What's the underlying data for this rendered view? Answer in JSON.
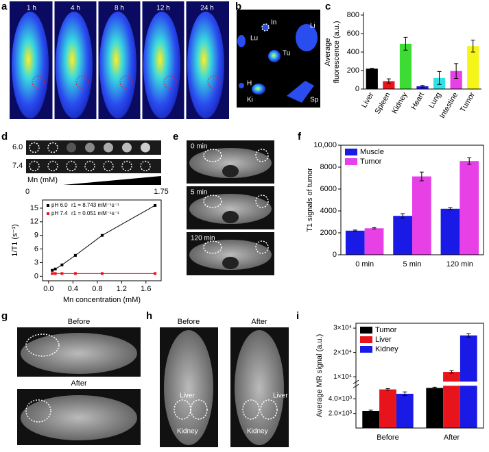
{
  "panel_labels": [
    "a",
    "b",
    "c",
    "d",
    "e",
    "f",
    "g",
    "h",
    "i"
  ],
  "panel_a": {
    "time_labels": [
      "1 h",
      "4 h",
      "8 h",
      "12 h",
      "24 h"
    ]
  },
  "panel_b": {
    "organ_labels": [
      "In",
      "Lu",
      "Li",
      "Tu",
      "H",
      "Ki",
      "Sp"
    ]
  },
  "panel_d_phantom": {
    "rows": [
      "6.0",
      "7.4"
    ],
    "axis_label": "Mn (mM)",
    "range_labels": [
      "0",
      "1.75"
    ]
  },
  "panel_e": {
    "time_labels": [
      "0 min",
      "5 min",
      "120 min"
    ]
  },
  "panel_g": {
    "labels": [
      "Before",
      "After"
    ]
  },
  "panel_h": {
    "labels": [
      "Before",
      "After"
    ],
    "before_annotations": [
      "Liver",
      "Kidney"
    ],
    "after_annotations": [
      "Liver",
      "Kidney"
    ]
  },
  "chart_data": [
    {
      "type": "bar",
      "ylabel": [
        "Average",
        "fluorescence (a.u.)"
      ],
      "frame": false,
      "categories": [
        "Liver",
        "Spleen",
        "Kidney",
        "Heart",
        "Lung",
        "Intestine",
        "Tumor"
      ],
      "values": [
        220,
        85,
        490,
        30,
        120,
        195,
        465
      ],
      "errors": [
        5,
        25,
        70,
        10,
        70,
        80,
        65
      ],
      "colors": [
        "#000000",
        "#e8141b",
        "#3ddc35",
        "#1a1ae6",
        "#33e0e6",
        "#e640e6",
        "#f5f51a"
      ],
      "ylim": [
        0,
        800
      ],
      "yticks": [
        0,
        200,
        400,
        600,
        800
      ]
    },
    {
      "type": "line",
      "xlabel": "Mn concentration (mM)",
      "ylabel": "1/T1 (s⁻¹)",
      "frame": true,
      "x": [
        0.06,
        0.11,
        0.22,
        0.44,
        0.88,
        1.75
      ],
      "series": [
        {
          "name": "pH 6.0",
          "legend_detail": "r1 = 8.743 mM⁻¹s⁻¹",
          "color": "#000000",
          "values": [
            1.3,
            1.6,
            2.5,
            4.6,
            9.0,
            15.6
          ]
        },
        {
          "name": "pH 7.4",
          "legend_detail": "r1 = 0.051 mM⁻¹s⁻¹",
          "color": "#e8141b",
          "values": [
            0.6,
            0.6,
            0.6,
            0.6,
            0.6,
            0.6
          ]
        }
      ],
      "xlim": [
        -0.1,
        1.85
      ],
      "xticks": [
        {
          "value": 0,
          "label": "0.0"
        },
        0.4,
        0.8,
        1.2,
        1.6
      ],
      "ylim": [
        -1,
        16.8
      ],
      "yticks": [
        0,
        3,
        6,
        9,
        12,
        15
      ]
    },
    {
      "type": "bar",
      "ylabel": "T1 signals of tumor",
      "frame": true,
      "categories": [
        "0 min",
        "5 min",
        "120 min"
      ],
      "series": [
        {
          "name": "Muscle",
          "color": "#1a1ae6",
          "values": [
            2200,
            3550,
            4200
          ],
          "errors": [
            60,
            200,
            100
          ]
        },
        {
          "name": "Tumor",
          "color": "#e640e6",
          "values": [
            2420,
            7150,
            8550
          ],
          "errors": [
            60,
            400,
            300
          ]
        }
      ],
      "ylim": [
        0,
        10000
      ],
      "yticks": [
        0,
        2000,
        4000,
        6000,
        8000,
        {
          "value": 10000,
          "label": "10,000"
        }
      ]
    },
    {
      "type": "bar",
      "ylabel": "Average MR signal (a.u.)",
      "frame": true,
      "categories": [
        "Before",
        "After"
      ],
      "series": [
        {
          "name": "Tumor",
          "color": "#000000",
          "values": [
            2350,
            5500
          ],
          "errors": [
            100,
            100
          ]
        },
        {
          "name": "Liver",
          "color": "#e8141b",
          "values": [
            5300,
            12000
          ],
          "errors": [
            100,
            500
          ]
        },
        {
          "name": "Kidney",
          "color": "#1a1ae6",
          "values": [
            4700,
            27000
          ],
          "errors": [
            250,
            700
          ]
        }
      ],
      "ylim": [
        0,
        32000
      ],
      "axis_break": [
        5800,
        8000
      ],
      "yticks": [
        {
          "value": 2000,
          "label": "2.0×10³"
        },
        {
          "value": 4000,
          "label": "4.0×10³"
        },
        {
          "value": 10000,
          "label": "1×10⁴"
        },
        {
          "value": 20000,
          "label": "2×10⁴"
        },
        {
          "value": 30000,
          "label": "3×10⁴"
        }
      ]
    }
  ]
}
